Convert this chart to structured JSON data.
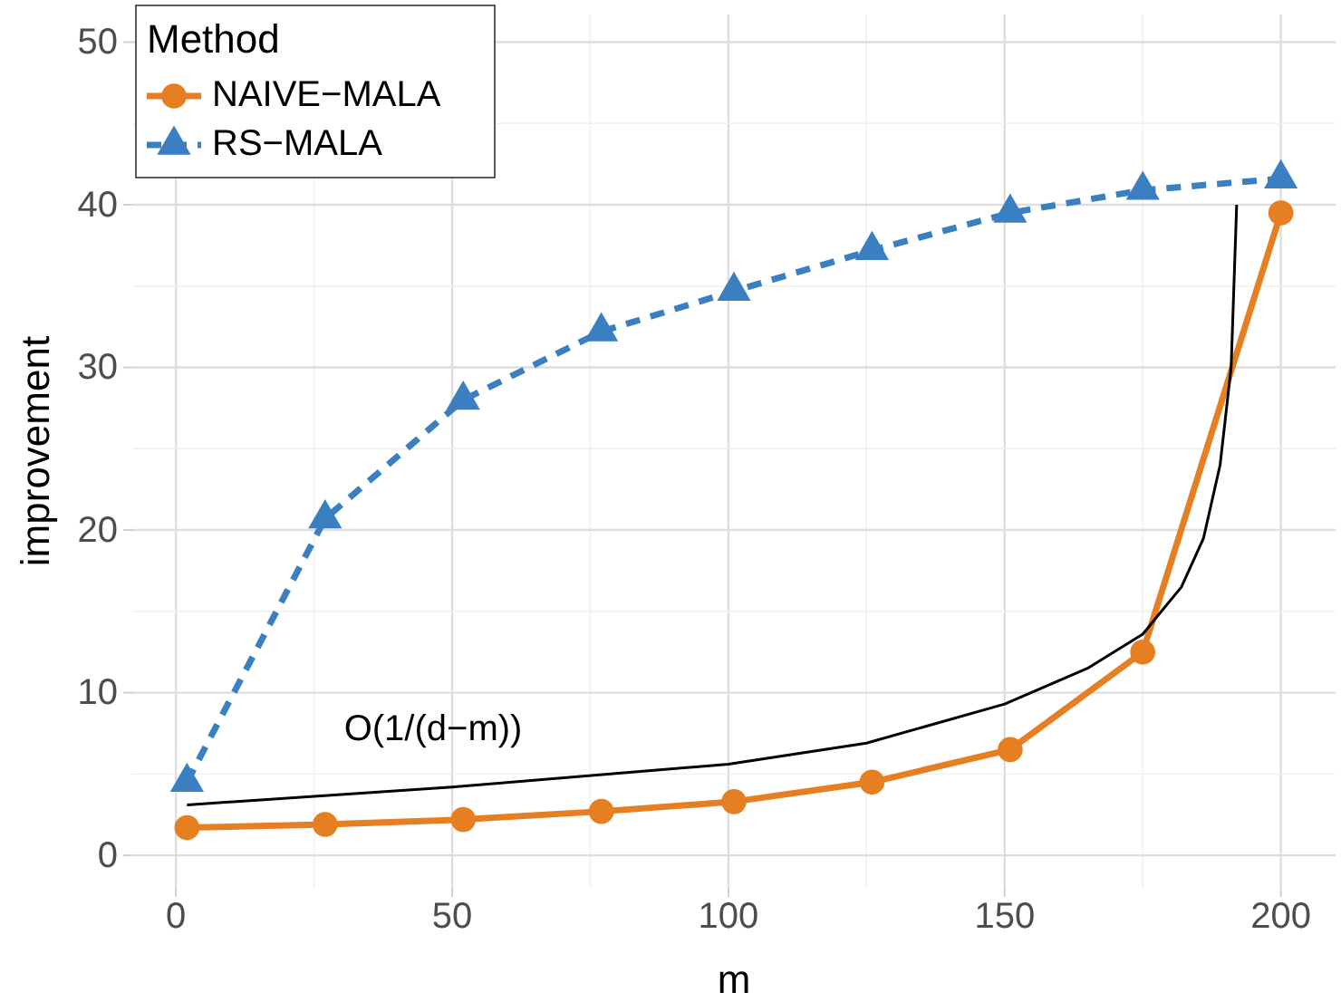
{
  "chart_data": {
    "type": "line",
    "xlabel": "m",
    "ylabel": "improvement",
    "legend_title": "Method",
    "legend": "top left",
    "grid": true,
    "xlim": [
      -7.9,
      209.9
    ],
    "ylim": [
      -2,
      51.7
    ],
    "xticks": [
      0,
      50,
      100,
      150,
      200
    ],
    "yticks": [
      0,
      10,
      20,
      30,
      40,
      50
    ],
    "series": [
      {
        "name": "NAIVE−MALA",
        "color": "#e67e22",
        "marker": "circle",
        "line_style": "solid",
        "x": [
          2,
          27,
          52,
          77,
          101,
          126,
          151,
          175,
          200
        ],
        "values": [
          1.7,
          1.9,
          2.2,
          2.7,
          3.3,
          4.5,
          6.5,
          12.5,
          39.5
        ]
      },
      {
        "name": "RS−MALA",
        "color": "#3a7fc1",
        "marker": "triangle",
        "line_style": "dashed",
        "x": [
          2,
          27,
          52,
          77,
          101,
          126,
          151,
          175,
          200
        ],
        "values": [
          4.5,
          20.7,
          28.0,
          32.2,
          34.7,
          37.2,
          39.5,
          40.9,
          41.6
        ]
      },
      {
        "color": "#000000",
        "marker": "none",
        "line_style": "solid",
        "x": [
          2,
          50,
          100,
          125,
          150,
          165,
          175,
          182,
          186,
          189,
          191,
          192
        ],
        "values": [
          3.1,
          4.2,
          5.6,
          6.9,
          9.3,
          11.5,
          13.6,
          16.5,
          19.5,
          24,
          30,
          40
        ]
      }
    ],
    "annotations": [
      "O(1/(d−m))"
    ]
  }
}
